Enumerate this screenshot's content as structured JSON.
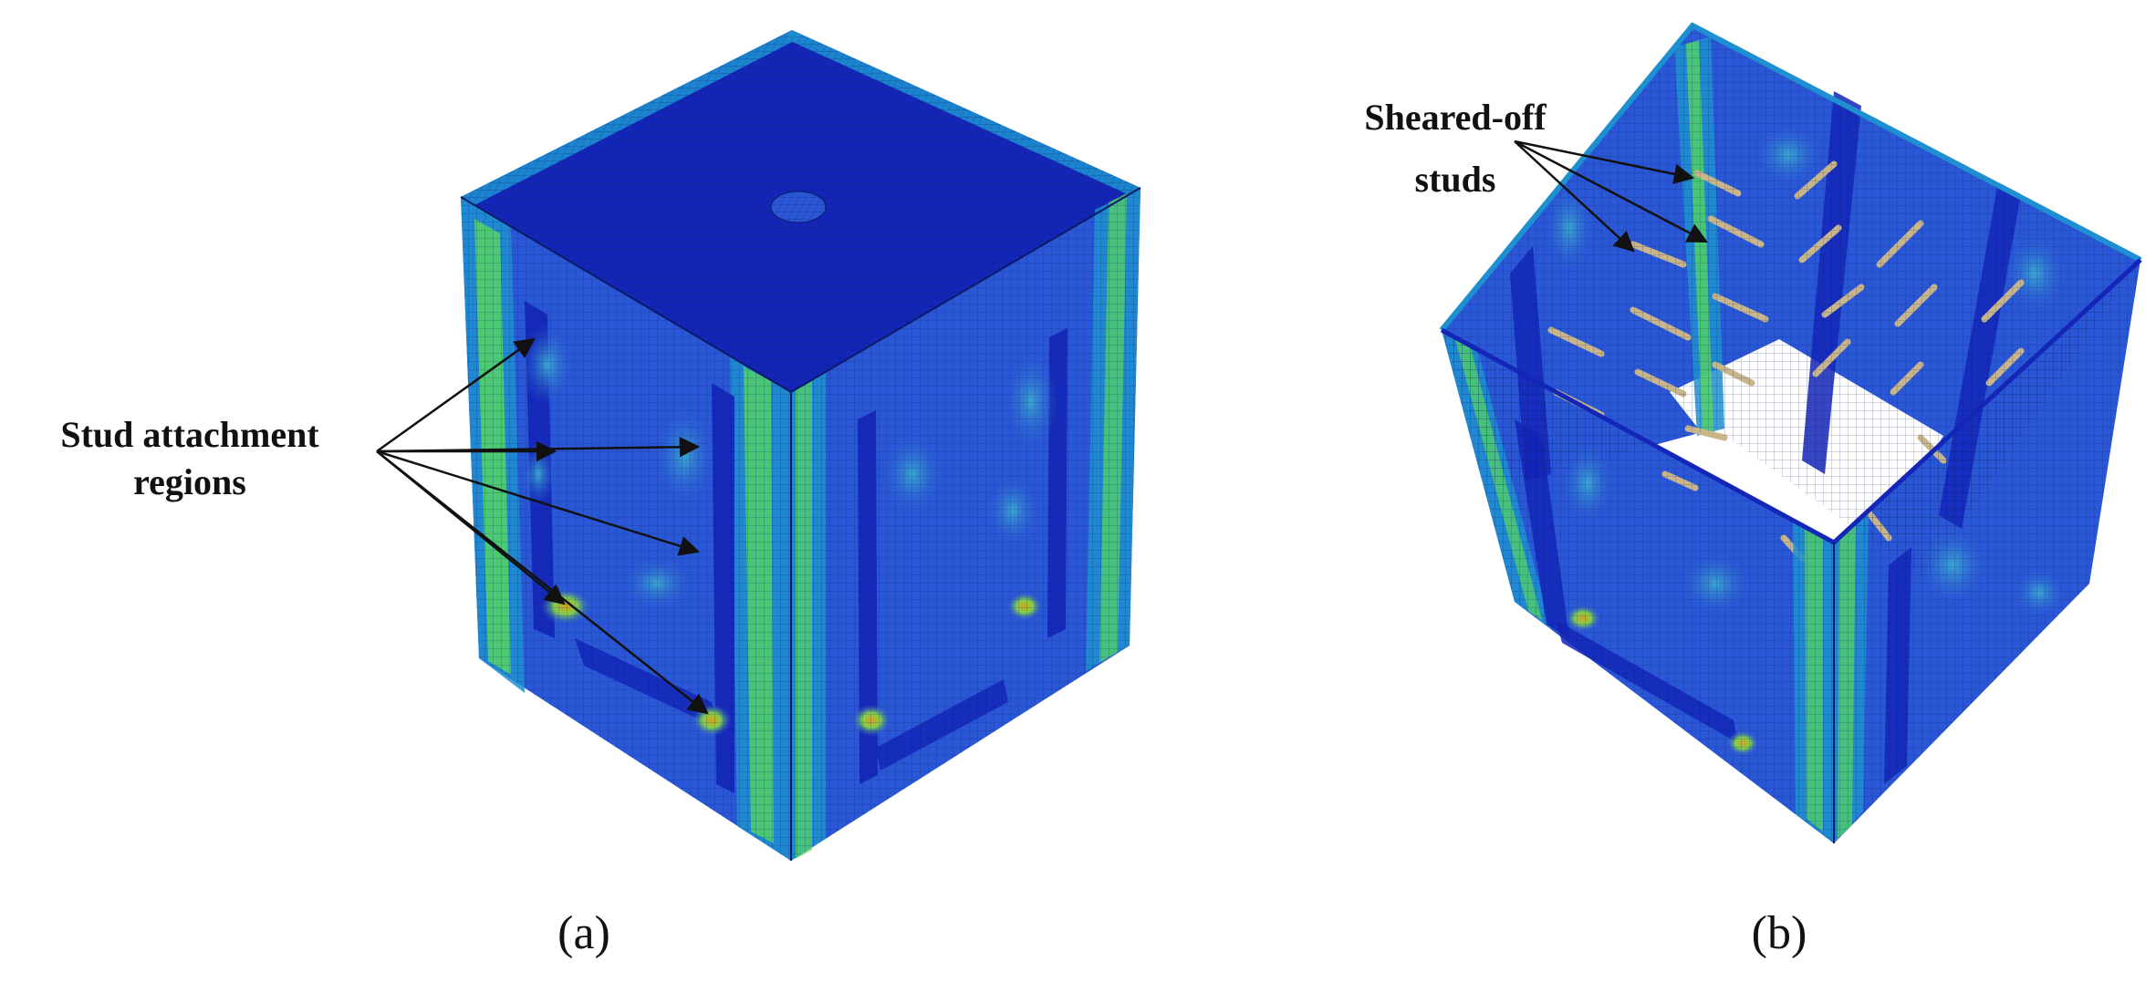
{
  "panels": [
    {
      "id": "a",
      "caption": "(a)",
      "annotation": {
        "lines": [
          "Stud attachment",
          "regions"
        ]
      }
    },
    {
      "id": "b",
      "caption": "(b)",
      "annotation": {
        "lines": [
          "Sheared-off",
          "studs"
        ]
      }
    }
  ],
  "colors": {
    "mesh_low": "#1326b8",
    "mesh_mid_low": "#2a57d6",
    "mesh_mid": "#1e8fd0",
    "mesh_mid_high": "#2fc07a",
    "mesh_high": "#58d95a",
    "hotspot": "#d4a21a",
    "arrow": "#111111"
  }
}
